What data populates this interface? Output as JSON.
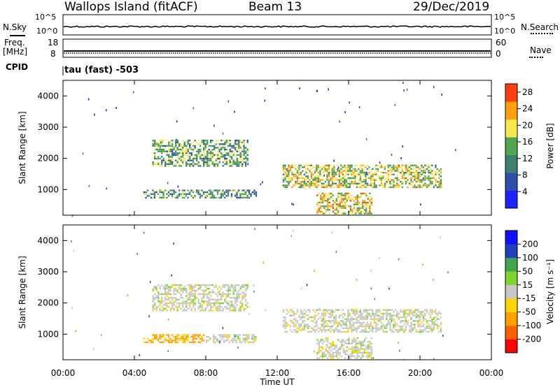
{
  "header": {
    "title": "Wallops Island (fitACF)",
    "beam": "Beam 13",
    "date": "29/Dec/2019"
  },
  "meta_panel": {
    "nsky_label": "N.Sky",
    "nsearch_label": "N.Search",
    "noise_top_tick": "10^5",
    "noise_bottom_tick": "10^0",
    "freq_label": "Freq.",
    "freq_unit": "[MHz]",
    "freq_top_tick": "18",
    "freq_bottom_tick": "8",
    "nave_label": "Nave",
    "nave_top_tick": "60",
    "nave_bottom_tick": "0",
    "cpid_label": "CPID",
    "cpid_value": "tau (fast) -503"
  },
  "chart_data": [
    {
      "type": "heatmap",
      "ylabel": "Slant Range [km]",
      "xlabel": "Time UT",
      "x_ticks": [
        "00:00",
        "04:00",
        "08:00",
        "12:00",
        "16:00",
        "20:00",
        "00:00"
      ],
      "x_range_hours": [
        0,
        24
      ],
      "y_ticks": [
        1000,
        2000,
        3000,
        4000
      ],
      "ylim": [
        180,
        4500
      ],
      "colorbar": {
        "label": "Power [dB]",
        "ticks": [
          4,
          8,
          12,
          16,
          20,
          24,
          28
        ],
        "range": [
          0,
          30
        ],
        "colors": [
          "#1f1fff",
          "#2f4fa8",
          "#3f7f6f",
          "#4fa84f",
          "#f7e84f",
          "#ff9f0f",
          "#ff3f0f"
        ]
      },
      "echo_regions": [
        {
          "t_start": 5.0,
          "t_end": 10.4,
          "range_low": 1700,
          "range_high": 2600,
          "power_db": 14
        },
        {
          "t_start": 4.5,
          "t_end": 10.9,
          "range_low": 700,
          "range_high": 1000,
          "power_db": 12
        },
        {
          "t_start": 12.3,
          "t_end": 21.3,
          "range_low": 1000,
          "range_high": 1800,
          "power_db": 18
        },
        {
          "t_start": 14.2,
          "t_end": 17.4,
          "range_low": 180,
          "range_high": 900,
          "power_db": 20
        }
      ]
    },
    {
      "type": "heatmap",
      "ylabel": "Slant Range [km]",
      "xlabel": "Time UT",
      "x_ticks": [
        "00:00",
        "04:00",
        "08:00",
        "12:00",
        "16:00",
        "20:00",
        "00:00"
      ],
      "x_range_hours": [
        0,
        24
      ],
      "y_ticks": [
        1000,
        2000,
        3000,
        4000
      ],
      "ylim": [
        180,
        4500
      ],
      "colorbar": {
        "label": "Velocity [m s⁻¹]",
        "ticks": [
          -200,
          -100,
          -50,
          -15,
          15,
          50,
          100,
          200
        ],
        "colors": [
          "#ff0000",
          "#ff5f00",
          "#ff9f00",
          "#ffd700",
          "#c8c8c8",
          "#7fd42f",
          "#3fa84f",
          "#1f3fbf",
          "#1010ff"
        ]
      },
      "echo_regions": [
        {
          "t_start": 5.0,
          "t_end": 10.4,
          "range_low": 1700,
          "range_high": 2600,
          "velocity": 0
        },
        {
          "t_start": 4.5,
          "t_end": 8.0,
          "range_low": 700,
          "range_high": 1000,
          "velocity": -60
        },
        {
          "t_start": 8.0,
          "t_end": 10.9,
          "range_low": 700,
          "range_high": 1000,
          "velocity": 0
        },
        {
          "t_start": 12.3,
          "t_end": 21.3,
          "range_low": 1000,
          "range_high": 1800,
          "velocity": 0
        },
        {
          "t_start": 14.2,
          "t_end": 17.4,
          "range_low": 180,
          "range_high": 900,
          "velocity": 0
        }
      ]
    }
  ]
}
